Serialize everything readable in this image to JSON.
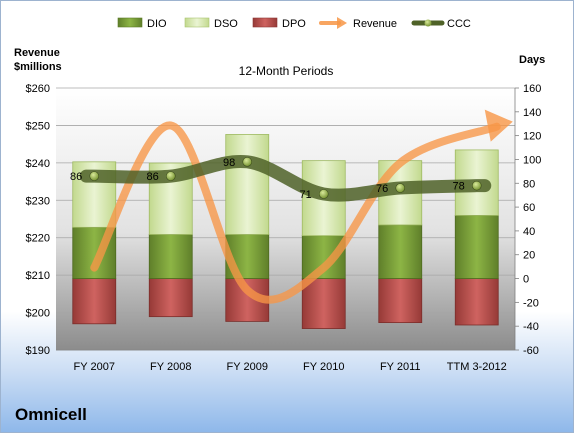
{
  "company": "Omnicell",
  "chart_data": {
    "type": "bar",
    "title": "12-Month Periods",
    "left_axis_label": [
      "Revenue",
      "$millions"
    ],
    "right_axis_label": "Days",
    "categories": [
      "FY 2007",
      "FY 2008",
      "FY 2009",
      "FY 2010",
      "FY 2011",
      "TTM 3-2012"
    ],
    "left_axis": {
      "min": 190,
      "max": 260,
      "step": 10,
      "tick_prefix": "$"
    },
    "right_axis": {
      "min": -60,
      "max": 160,
      "step": 20
    },
    "legend_position": "top",
    "legend": [
      {
        "name": "DIO",
        "kind": "bar"
      },
      {
        "name": "DSO",
        "kind": "bar"
      },
      {
        "name": "DPO",
        "kind": "bar"
      },
      {
        "name": "Revenue",
        "kind": "arrow"
      },
      {
        "name": "CCC",
        "kind": "line"
      }
    ],
    "series": [
      {
        "name": "DIO",
        "axis": "right",
        "values": [
          43,
          37,
          37,
          36,
          45,
          53
        ]
      },
      {
        "name": "DSO",
        "axis": "right",
        "values": [
          55,
          60,
          84,
          63,
          54,
          55
        ]
      },
      {
        "name": "DPO",
        "axis": "right",
        "values": [
          -38,
          -32,
          -36,
          -42,
          -37,
          -39
        ]
      },
      {
        "name": "Revenue",
        "axis": "left",
        "values": [
          212,
          250,
          206,
          212,
          240,
          251
        ]
      },
      {
        "name": "CCC",
        "axis": "right",
        "values": [
          86,
          86,
          98,
          71,
          76,
          78
        ]
      }
    ],
    "ccc_labels": [
      "86",
      "86",
      "98",
      "71",
      "76",
      "78"
    ],
    "colors": {
      "DIO": "#7a9f37",
      "DSO": "#d7e9b0",
      "DPO": "#c0504d",
      "Revenue": "#f79646",
      "CCC": "#4f6228"
    }
  }
}
